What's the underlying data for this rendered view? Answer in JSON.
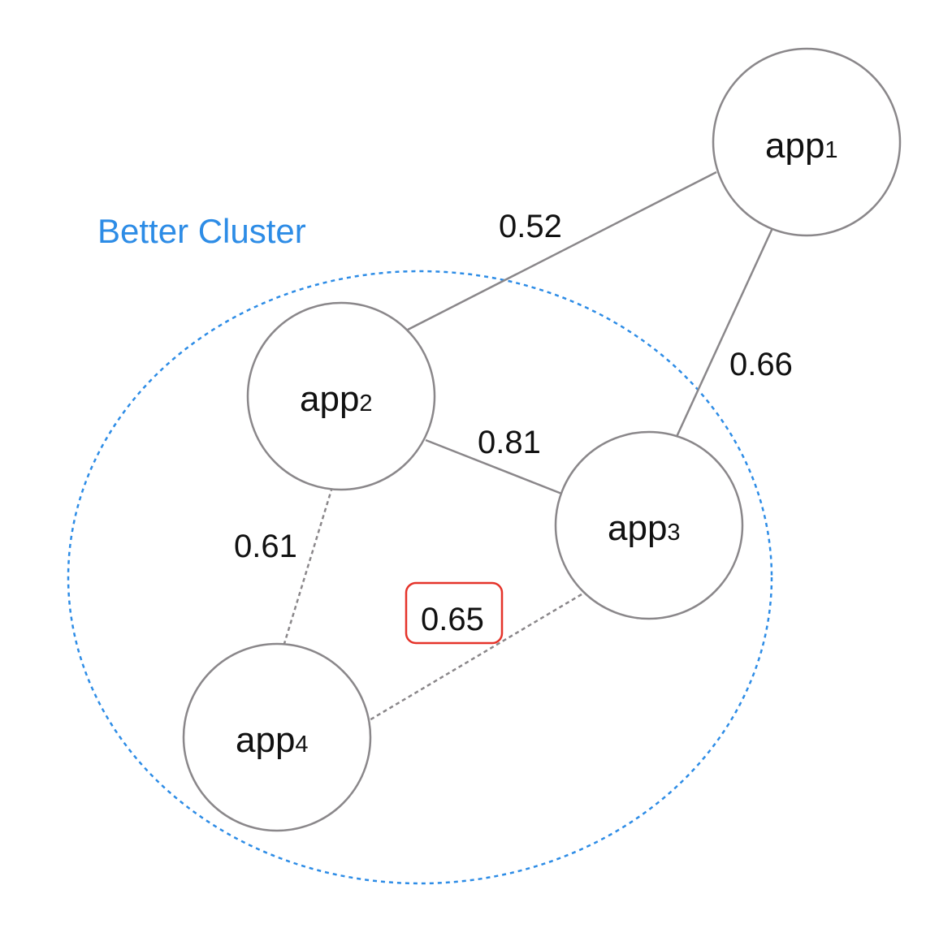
{
  "diagram": {
    "cluster": {
      "label": "Better Cluster",
      "color": "#2d8ce6"
    },
    "highlight_color": "#e5332a",
    "nodes": {
      "app1": {
        "base": "app",
        "sub": "1"
      },
      "app2": {
        "base": "app",
        "sub": "2"
      },
      "app3": {
        "base": "app",
        "sub": "3"
      },
      "app4": {
        "base": "app",
        "sub": "4"
      }
    },
    "edges": {
      "app1_app2": {
        "weight": "0.52",
        "style": "solid"
      },
      "app1_app3": {
        "weight": "0.66",
        "style": "solid"
      },
      "app2_app3": {
        "weight": "0.81",
        "style": "solid"
      },
      "app2_app4": {
        "weight": "0.61",
        "style": "dashed"
      },
      "app3_app4": {
        "weight": "0.65",
        "style": "dashed",
        "highlighted": true
      }
    }
  }
}
